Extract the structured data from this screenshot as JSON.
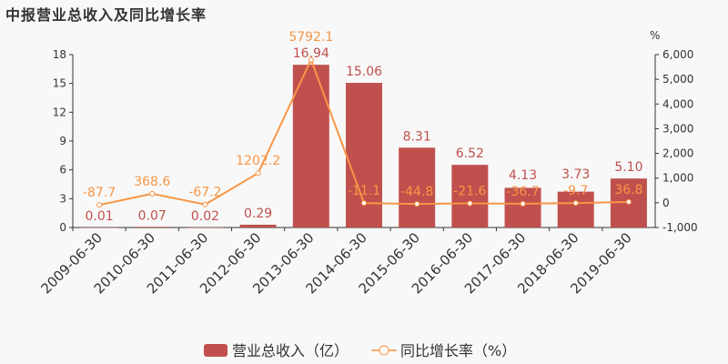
{
  "chart_data": {
    "type": "bar+line",
    "title": "中报营业总收入及同比增长率",
    "categories": [
      "2009-06-30",
      "2010-06-30",
      "2011-06-30",
      "2012-06-30",
      "2013-06-30",
      "2014-06-30",
      "2015-06-30",
      "2016-06-30",
      "2017-06-30",
      "2018-06-30",
      "2019-06-30"
    ],
    "series": [
      {
        "name": "营业总收入（亿）",
        "type": "bar",
        "axis": "left",
        "color": "#c0504d",
        "values": [
          0.01,
          0.07,
          0.02,
          0.29,
          16.94,
          15.06,
          8.31,
          6.52,
          4.13,
          3.73,
          5.1
        ],
        "labels": [
          "0.01",
          "0.07",
          "0.02",
          "0.29",
          "16.94",
          "15.06",
          "8.31",
          "6.52",
          "4.13",
          "3.73",
          "5.10"
        ]
      },
      {
        "name": "同比增长率（%）",
        "type": "line",
        "axis": "right",
        "color": "#f79646",
        "values": [
          -87.7,
          368.6,
          -67.2,
          1202.2,
          5792.1,
          -11.1,
          -44.8,
          -21.6,
          -36.7,
          -9.7,
          36.8
        ],
        "labels": [
          "-87.7",
          "368.6",
          "-67.2",
          "1202.2",
          "5792.1",
          "-11.1",
          "-44.8",
          "-21.6",
          "-36.7",
          "-9.7",
          "36.8"
        ]
      }
    ],
    "left_axis": {
      "ylim": [
        0,
        18
      ],
      "ticks": [
        "0",
        "3",
        "6",
        "9",
        "12",
        "15",
        "18"
      ]
    },
    "right_axis": {
      "label": "%",
      "ylim": [
        -1000,
        6000
      ],
      "ticks": [
        "-1,000",
        "0",
        "1,000",
        "2,000",
        "3,000",
        "4,000",
        "5,000",
        "6,000"
      ]
    },
    "legend": "bottom-center",
    "grid": false
  }
}
